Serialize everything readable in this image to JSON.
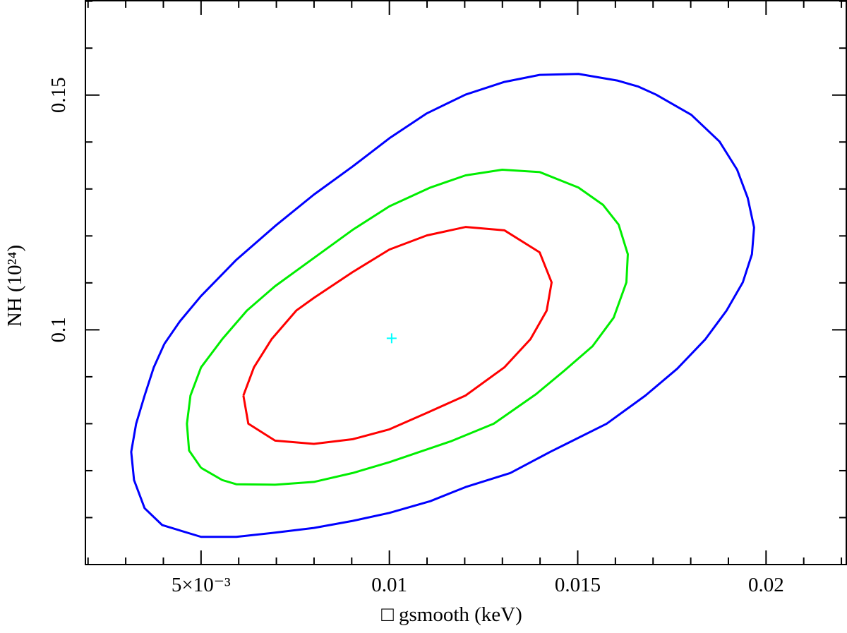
{
  "chart_data": {
    "type": "line",
    "x_label": "□ gsmooth (keV)",
    "y_label": "NH (10²⁴)",
    "xlim": [
      0.00193,
      0.02213
    ],
    "ylim": [
      0.05,
      0.1701
    ],
    "xticks": [
      {
        "value": 0.005,
        "label": "5×10⁻³"
      },
      0.01,
      0.015,
      0.02
    ],
    "yticks": [
      0.1,
      0.15
    ],
    "xminorticks": [
      0.002,
      0.003,
      0.004,
      0.006,
      0.007,
      0.008,
      0.009,
      0.011,
      0.012,
      0.013,
      0.014,
      0.016,
      0.017,
      0.018,
      0.019,
      0.021,
      0.022
    ],
    "yminorticks": [
      0.06,
      0.07,
      0.08,
      0.09,
      0.11,
      0.12,
      0.13,
      0.14,
      0.16,
      0.17
    ],
    "grid": false,
    "series": [
      {
        "color": "#ff0000",
        "x": [
          0.006124,
          0.006404,
          0.006873,
          0.007528,
          0.007996,
          0.009026,
          0.01,
          0.010993,
          0.012022,
          0.013052,
          0.013989,
          0.014307,
          0.014176,
          0.013745,
          0.013052,
          0.012022,
          0.010993,
          0.01,
          0.009026,
          0.007996,
          0.006966,
          0.006255,
          0.006124
        ],
        "values": [
          0.086,
          0.092,
          0.098,
          0.1041,
          0.1068,
          0.1123,
          0.1171,
          0.1201,
          0.1219,
          0.1212,
          0.1165,
          0.1101,
          0.1041,
          0.098,
          0.092,
          0.086,
          0.0823,
          0.0788,
          0.0767,
          0.0757,
          0.0764,
          0.08,
          0.086
        ]
      },
      {
        "color": "#00ee00",
        "x": [
          0.005,
          0.004682,
          0.004625,
          0.004719,
          0.005,
          0.005562,
          0.006217,
          0.006966,
          0.007996,
          0.009026,
          0.01,
          0.011086,
          0.012022,
          0.012996,
          0.013989,
          0.015019,
          0.015674,
          0.016086,
          0.01633,
          0.016292,
          0.015955,
          0.015393,
          0.014644,
          0.013895,
          0.012772,
          0.011648,
          0.010805,
          0.01,
          0.009026,
          0.007996,
          0.006966,
          0.005936,
          0.005562,
          0.005
        ],
        "values": [
          0.0706,
          0.0743,
          0.08,
          0.086,
          0.092,
          0.098,
          0.1041,
          0.1093,
          0.1153,
          0.1213,
          0.1263,
          0.1303,
          0.1329,
          0.1341,
          0.1336,
          0.1303,
          0.1266,
          0.1224,
          0.1161,
          0.1101,
          0.1026,
          0.0965,
          0.0913,
          0.0863,
          0.08,
          0.0763,
          0.074,
          0.0718,
          0.0695,
          0.0676,
          0.067,
          0.0671,
          0.068,
          0.0706
        ]
      },
      {
        "color": "#0000ff",
        "x": [
          0.004026,
          0.004438,
          0.005,
          0.005936,
          0.006966,
          0.007996,
          0.009026,
          0.01,
          0.010993,
          0.012022,
          0.013052,
          0.013989,
          0.015019,
          0.016049,
          0.01661,
          0.017079,
          0.018015,
          0.018764,
          0.019232,
          0.019513,
          0.019682,
          0.019625,
          0.019382,
          0.018951,
          0.01839,
          0.01764,
          0.016798,
          0.015768,
          0.014644,
          0.01427,
          0.01321,
          0.012022,
          0.011086,
          0.01,
          0.009026,
          0.007996,
          0.006966,
          0.005936,
          0.005,
          0.00397,
          0.003502,
          0.003221,
          0.003146,
          0.003277,
          0.003502,
          0.003745,
          0.004026
        ],
        "values": [
          0.097,
          0.1018,
          0.1072,
          0.1149,
          0.1221,
          0.1288,
          0.1348,
          0.1408,
          0.1461,
          0.1501,
          0.1528,
          0.1543,
          0.1545,
          0.1531,
          0.1518,
          0.1501,
          0.1458,
          0.1401,
          0.1341,
          0.1281,
          0.1218,
          0.1161,
          0.1101,
          0.1041,
          0.098,
          0.0917,
          0.086,
          0.08,
          0.0755,
          0.074,
          0.0695,
          0.0665,
          0.0635,
          0.061,
          0.0593,
          0.0578,
          0.0568,
          0.0559,
          0.0559,
          0.0584,
          0.062,
          0.068,
          0.074,
          0.08,
          0.086,
          0.092,
          0.097
        ]
      }
    ],
    "best_fit": {
      "x": 0.01006,
      "y": 0.0982,
      "color": "#00ffff"
    }
  }
}
